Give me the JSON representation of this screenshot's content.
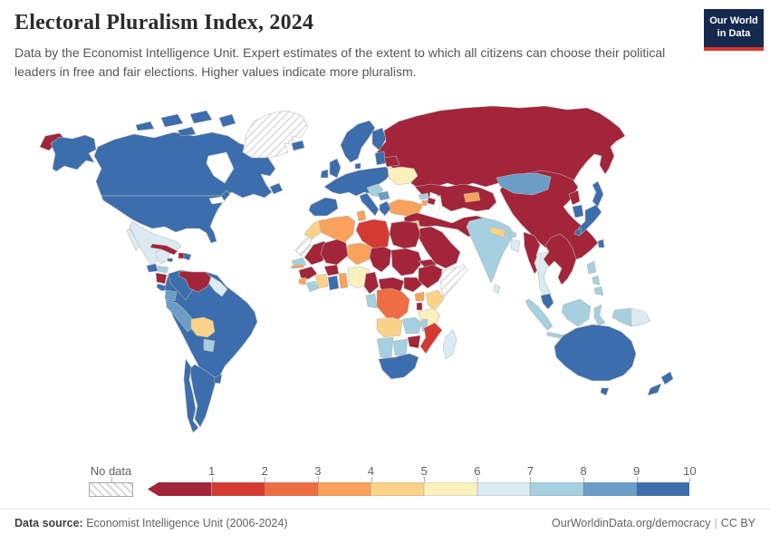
{
  "header": {
    "title": "Electoral Pluralism Index, 2024",
    "subtitle": "Data by the Economist Intelligence Unit. Expert estimates of the extent to which all citizens can choose their political leaders in free and fair elections. Higher values indicate more pluralism.",
    "logo_line1": "Our World",
    "logo_line2": "in Data",
    "logo_bg": "#15294f",
    "logo_accent": "#dc352c"
  },
  "legend": {
    "no_data_label": "No data",
    "ticks": [
      "1",
      "2",
      "3",
      "4",
      "5",
      "6",
      "7",
      "8",
      "9",
      "10"
    ],
    "colors": [
      "#a2253a",
      "#d53a32",
      "#ee6e44",
      "#f8a25c",
      "#fbd28a",
      "#fbf1bc",
      "#dcebf1",
      "#a6cfdf",
      "#6a9ec7",
      "#3c6dac"
    ]
  },
  "footer": {
    "source_label": "Data source:",
    "source_value": "Economist Intelligence Unit (2006-2024)",
    "credit_link": "OurWorldinData.org/democracy",
    "credit_separator": "|",
    "credit_license": "CC BY"
  },
  "chart_data": {
    "type": "heatmap",
    "subtype": "choropleth-world-map",
    "title": "Electoral Pluralism Index, 2024",
    "value_range": [
      0,
      10
    ],
    "legend_buckets": [
      {
        "range": "0-1",
        "color": "#a2253a"
      },
      {
        "range": "1-2",
        "color": "#d53a32"
      },
      {
        "range": "2-3",
        "color": "#ee6e44"
      },
      {
        "range": "3-4",
        "color": "#f8a25c"
      },
      {
        "range": "4-5",
        "color": "#fbd28a"
      },
      {
        "range": "5-6",
        "color": "#fbf1bc"
      },
      {
        "range": "6-7",
        "color": "#dcebf1"
      },
      {
        "range": "7-8",
        "color": "#a6cfdf"
      },
      {
        "range": "8-9",
        "color": "#6a9ec7"
      },
      {
        "range": "9-10",
        "color": "#3c6dac"
      }
    ],
    "regions": {
      "russia": {
        "label": "Russia",
        "value": "0-1",
        "color": "#a2253a"
      },
      "canada": {
        "label": "Canada",
        "value": "9-10",
        "color": "#3c6dac"
      },
      "usa": {
        "label": "United States",
        "value": "9-10",
        "color": "#3c6dac"
      },
      "greenland": {
        "label": "Greenland",
        "value": "No data",
        "color": "none"
      },
      "mexico": {
        "label": "Mexico",
        "value": "6-7",
        "color": "#dcebf1"
      },
      "guatemala": {
        "label": "Guatemala",
        "value": "9-10",
        "color": "#3c6dac"
      },
      "honduras": {
        "label": "Honduras",
        "value": "7-8",
        "color": "#a6cfdf"
      },
      "nicaragua": {
        "label": "Nicaragua",
        "value": "0-1",
        "color": "#a2253a"
      },
      "costa-rica": {
        "label": "Costa Rica",
        "value": "9-10",
        "color": "#3c6dac"
      },
      "panama": {
        "label": "Panama",
        "value": "9-10",
        "color": "#3c6dac"
      },
      "cuba": {
        "label": "Cuba",
        "value": "0-1",
        "color": "#a2253a"
      },
      "jamaica": {
        "label": "Jamaica",
        "value": "9-10",
        "color": "#3c6dac"
      },
      "haiti": {
        "label": "Haiti",
        "value": "0-1",
        "color": "#a2253a"
      },
      "dominican-republic": {
        "label": "Dominican Republic",
        "value": "9-10",
        "color": "#3c6dac"
      },
      "colombia": {
        "label": "Colombia",
        "value": "9-10",
        "color": "#3c6dac"
      },
      "venezuela": {
        "label": "Venezuela",
        "value": "0-1",
        "color": "#a2253a"
      },
      "guyana-suriname": {
        "label": "Guyana & Suriname",
        "value": "6-7",
        "color": "#dcebf1"
      },
      "ecuador": {
        "label": "Ecuador",
        "value": "8-9",
        "color": "#6a9ec7"
      },
      "peru": {
        "label": "Peru",
        "value": "8-9",
        "color": "#6a9ec7"
      },
      "brazil": {
        "label": "Brazil",
        "value": "9-10",
        "color": "#3c6dac"
      },
      "bolivia": {
        "label": "Bolivia",
        "value": "4-5",
        "color": "#fbd28a"
      },
      "paraguay": {
        "label": "Paraguay",
        "value": "7-8",
        "color": "#a6cfdf"
      },
      "chile": {
        "label": "Chile",
        "value": "9-10",
        "color": "#3c6dac"
      },
      "argentina": {
        "label": "Argentina",
        "value": "9-10",
        "color": "#3c6dac"
      },
      "uruguay": {
        "label": "Uruguay",
        "value": "9-10",
        "color": "#3c6dac"
      },
      "iceland": {
        "label": "Iceland",
        "value": "9-10",
        "color": "#3c6dac"
      },
      "united-kingdom": {
        "label": "United Kingdom",
        "value": "9-10",
        "color": "#3c6dac"
      },
      "ireland": {
        "label": "Ireland",
        "value": "9-10",
        "color": "#3c6dac"
      },
      "norway-sweden": {
        "label": "Norway & Sweden",
        "value": "9-10",
        "color": "#3c6dac"
      },
      "finland": {
        "label": "Finland",
        "value": "9-10",
        "color": "#3c6dac"
      },
      "denmark": {
        "label": "Denmark",
        "value": "9-10",
        "color": "#3c6dac"
      },
      "baltic-states": {
        "label": "Baltic states",
        "value": "9-10",
        "color": "#3c6dac"
      },
      "western-central-europe": {
        "label": "Western & Central Europe",
        "value": "9-10",
        "color": "#3c6dac"
      },
      "iberia": {
        "label": "Spain & Portugal",
        "value": "9-10",
        "color": "#3c6dac"
      },
      "italy": {
        "label": "Italy",
        "value": "9-10",
        "color": "#3c6dac"
      },
      "greece": {
        "label": "Greece",
        "value": "9-10",
        "color": "#3c6dac"
      },
      "west-balkans": {
        "label": "Western Balkans",
        "value": "7-8",
        "color": "#a6cfdf"
      },
      "serbia-bulgaria": {
        "label": "Serbia & Bulgaria",
        "value": "8-9",
        "color": "#6a9ec7"
      },
      "ukraine-moldova": {
        "label": "Ukraine & Moldova",
        "value": "5-6",
        "color": "#fbf1bc"
      },
      "belarus": {
        "label": "Belarus",
        "value": "0-1",
        "color": "#a2253a"
      },
      "turkey": {
        "label": "Turkey",
        "value": "3-4",
        "color": "#f8a25c"
      },
      "georgia": {
        "label": "Georgia",
        "value": "7-8",
        "color": "#a6cfdf"
      },
      "armenia": {
        "label": "Armenia",
        "value": "3-4",
        "color": "#f8a25c"
      },
      "azerbaijan": {
        "label": "Azerbaijan",
        "value": "0-1",
        "color": "#a2253a"
      },
      "central-asia": {
        "label": "Kazakhstan & Central Asia",
        "value": "0-1",
        "color": "#a2253a"
      },
      "kyrgyzstan": {
        "label": "Kyrgyzstan",
        "value": "3-4",
        "color": "#f8a25c"
      },
      "middle-east": {
        "label": "Syria, Iraq, Iran, Afghanistan & Pakistan",
        "value": "0-1",
        "color": "#a2253a"
      },
      "arabian-peninsula": {
        "label": "Saudi Arabia & Gulf states",
        "value": "0-1",
        "color": "#a2253a"
      },
      "jordan": {
        "label": "Jordan",
        "value": "4-5",
        "color": "#fbd28a"
      },
      "israel": {
        "label": "Israel",
        "value": "8-9",
        "color": "#6a9ec7"
      },
      "china": {
        "label": "China",
        "value": "0-1",
        "color": "#a2253a"
      },
      "mongolia": {
        "label": "Mongolia",
        "value": "8-9",
        "color": "#6a9ec7"
      },
      "india": {
        "label": "India",
        "value": "7-8",
        "color": "#a6cfdf"
      },
      "nepal": {
        "label": "Nepal",
        "value": "4-5",
        "color": "#fbd28a"
      },
      "bhutan": {
        "label": "Bhutan",
        "value": "7-8",
        "color": "#a6cfdf"
      },
      "bangladesh": {
        "label": "Bangladesh",
        "value": "6-7",
        "color": "#dcebf1"
      },
      "sri-lanka": {
        "label": "Sri Lanka",
        "value": "6-7",
        "color": "#dcebf1"
      },
      "myanmar": {
        "label": "Myanmar",
        "value": "0-1",
        "color": "#a2253a"
      },
      "thailand": {
        "label": "Thailand",
        "value": "6-7",
        "color": "#dcebf1"
      },
      "vietnam-laos-cambodia": {
        "label": "Vietnam, Laos & Cambodia",
        "value": "0-1",
        "color": "#a2253a"
      },
      "malaysia": {
        "label": "Malaysia",
        "value": "9-10",
        "color": "#3c6dac"
      },
      "indonesia": {
        "label": "Indonesia",
        "value": "7-8",
        "color": "#a6cfdf"
      },
      "papua-new-guinea": {
        "label": "Papua New Guinea",
        "value": "6-7",
        "color": "#dcebf1"
      },
      "philippines": {
        "label": "Philippines",
        "value": "7-8",
        "color": "#a6cfdf"
      },
      "taiwan": {
        "label": "Taiwan",
        "value": "9-10",
        "color": "#3c6dac"
      },
      "north-korea": {
        "label": "North Korea",
        "value": "0-1",
        "color": "#a2253a"
      },
      "south-korea": {
        "label": "South Korea",
        "value": "9-10",
        "color": "#3c6dac"
      },
      "japan": {
        "label": "Japan",
        "value": "9-10",
        "color": "#3c6dac"
      },
      "morocco": {
        "label": "Morocco",
        "value": "4-5",
        "color": "#fbd28a"
      },
      "western-sahara": {
        "label": "Western Sahara",
        "value": "No data",
        "color": "none"
      },
      "algeria": {
        "label": "Algeria",
        "value": "3-4",
        "color": "#f8a25c"
      },
      "tunisia": {
        "label": "Tunisia",
        "value": "3-4",
        "color": "#f8a25c"
      },
      "libya": {
        "label": "Libya",
        "value": "1-2",
        "color": "#d53a32"
      },
      "egypt": {
        "label": "Egypt",
        "value": "0-1",
        "color": "#a2253a"
      },
      "mauritania": {
        "label": "Mauritania",
        "value": "0-1",
        "color": "#a2253a"
      },
      "mali": {
        "label": "Mali",
        "value": "0-1",
        "color": "#a2253a"
      },
      "niger": {
        "label": "Niger",
        "value": "3-4",
        "color": "#f8a25c"
      },
      "chad": {
        "label": "Chad",
        "value": "0-1",
        "color": "#a2253a"
      },
      "sudan": {
        "label": "Sudan",
        "value": "0-1",
        "color": "#a2253a"
      },
      "eritrea": {
        "label": "Eritrea",
        "value": "0-1",
        "color": "#a2253a"
      },
      "ethiopia": {
        "label": "Ethiopia",
        "value": "0-1",
        "color": "#a2253a"
      },
      "somalia": {
        "label": "Somalia",
        "value": "No data",
        "color": "none"
      },
      "senegal": {
        "label": "Senegal",
        "value": "7-8",
        "color": "#a6cfdf"
      },
      "gambia": {
        "label": "Gambia",
        "value": "3-4",
        "color": "#f8a25c"
      },
      "guinea": {
        "label": "Guinea",
        "value": "0-1",
        "color": "#a2253a"
      },
      "sierra-leone": {
        "label": "Sierra Leone",
        "value": "3-4",
        "color": "#f8a25c"
      },
      "liberia": {
        "label": "Liberia",
        "value": "7-8",
        "color": "#a6cfdf"
      },
      "ivory-coast": {
        "label": "Côte d'Ivoire",
        "value": "4-5",
        "color": "#fbd28a"
      },
      "burkina-faso": {
        "label": "Burkina Faso",
        "value": "0-1",
        "color": "#a2253a"
      },
      "ghana": {
        "label": "Ghana",
        "value": "9-10",
        "color": "#3c6dac"
      },
      "togo-benin": {
        "label": "Togo & Benin",
        "value": "3-4",
        "color": "#f8a25c"
      },
      "nigeria": {
        "label": "Nigeria",
        "value": "5-6",
        "color": "#fbf1bc"
      },
      "cameroon": {
        "label": "Cameroon",
        "value": "0-1",
        "color": "#a2253a"
      },
      "central-african-republic": {
        "label": "Central African Republic",
        "value": "0-1",
        "color": "#a2253a"
      },
      "south-sudan": {
        "label": "South Sudan",
        "value": "0-1",
        "color": "#a2253a"
      },
      "uganda": {
        "label": "Uganda",
        "value": "3-4",
        "color": "#f8a25c"
      },
      "kenya": {
        "label": "Kenya",
        "value": "4-5",
        "color": "#fbd28a"
      },
      "rwanda-burundi": {
        "label": "Rwanda & Burundi",
        "value": "0-1",
        "color": "#a2253a"
      },
      "dr-congo": {
        "label": "Democratic Republic of Congo",
        "value": "2-3",
        "color": "#ee6e44"
      },
      "gabon-congo": {
        "label": "Gabon & Congo",
        "value": "7-8",
        "color": "#a6cfdf"
      },
      "tanzania": {
        "label": "Tanzania",
        "value": "5-6",
        "color": "#fbf1bc"
      },
      "angola": {
        "label": "Angola",
        "value": "4-5",
        "color": "#fbd28a"
      },
      "zambia": {
        "label": "Zambia",
        "value": "7-8",
        "color": "#a6cfdf"
      },
      "malawi": {
        "label": "Malawi",
        "value": "7-8",
        "color": "#a6cfdf"
      },
      "mozambique": {
        "label": "Mozambique",
        "value": "1-2",
        "color": "#d53a32"
      },
      "zimbabwe": {
        "label": "Zimbabwe",
        "value": "0-1",
        "color": "#a2253a"
      },
      "namibia": {
        "label": "Namibia",
        "value": "7-8",
        "color": "#a6cfdf"
      },
      "botswana": {
        "label": "Botswana",
        "value": "7-8",
        "color": "#a6cfdf"
      },
      "south-africa": {
        "label": "South Africa",
        "value": "9-10",
        "color": "#3c6dac"
      },
      "madagascar": {
        "label": "Madagascar",
        "value": "6-7",
        "color": "#dcebf1"
      },
      "australia": {
        "label": "Australia",
        "value": "9-10",
        "color": "#3c6dac"
      },
      "new-zealand": {
        "label": "New Zealand",
        "value": "9-10",
        "color": "#3c6dac"
      }
    }
  }
}
